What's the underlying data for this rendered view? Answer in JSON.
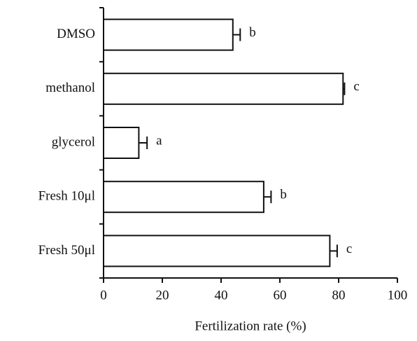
{
  "chart_data": {
    "type": "bar",
    "orientation": "horizontal",
    "xlabel": "Fertilization rate (%)",
    "categories": [
      "DMSO",
      "methanol",
      "glycerol",
      "Fresh 10μl",
      "Fresh 50μl"
    ],
    "values": [
      44,
      81.5,
      12,
      54.5,
      77
    ],
    "errors": [
      2.5,
      0.5,
      2.8,
      2.5,
      2.5
    ],
    "annotations": [
      "b",
      "c",
      "a",
      "b",
      "c"
    ],
    "color": "#ffffff",
    "xlim": [
      0,
      100
    ],
    "xticks": [
      0,
      20,
      40,
      60,
      80,
      100
    ]
  }
}
